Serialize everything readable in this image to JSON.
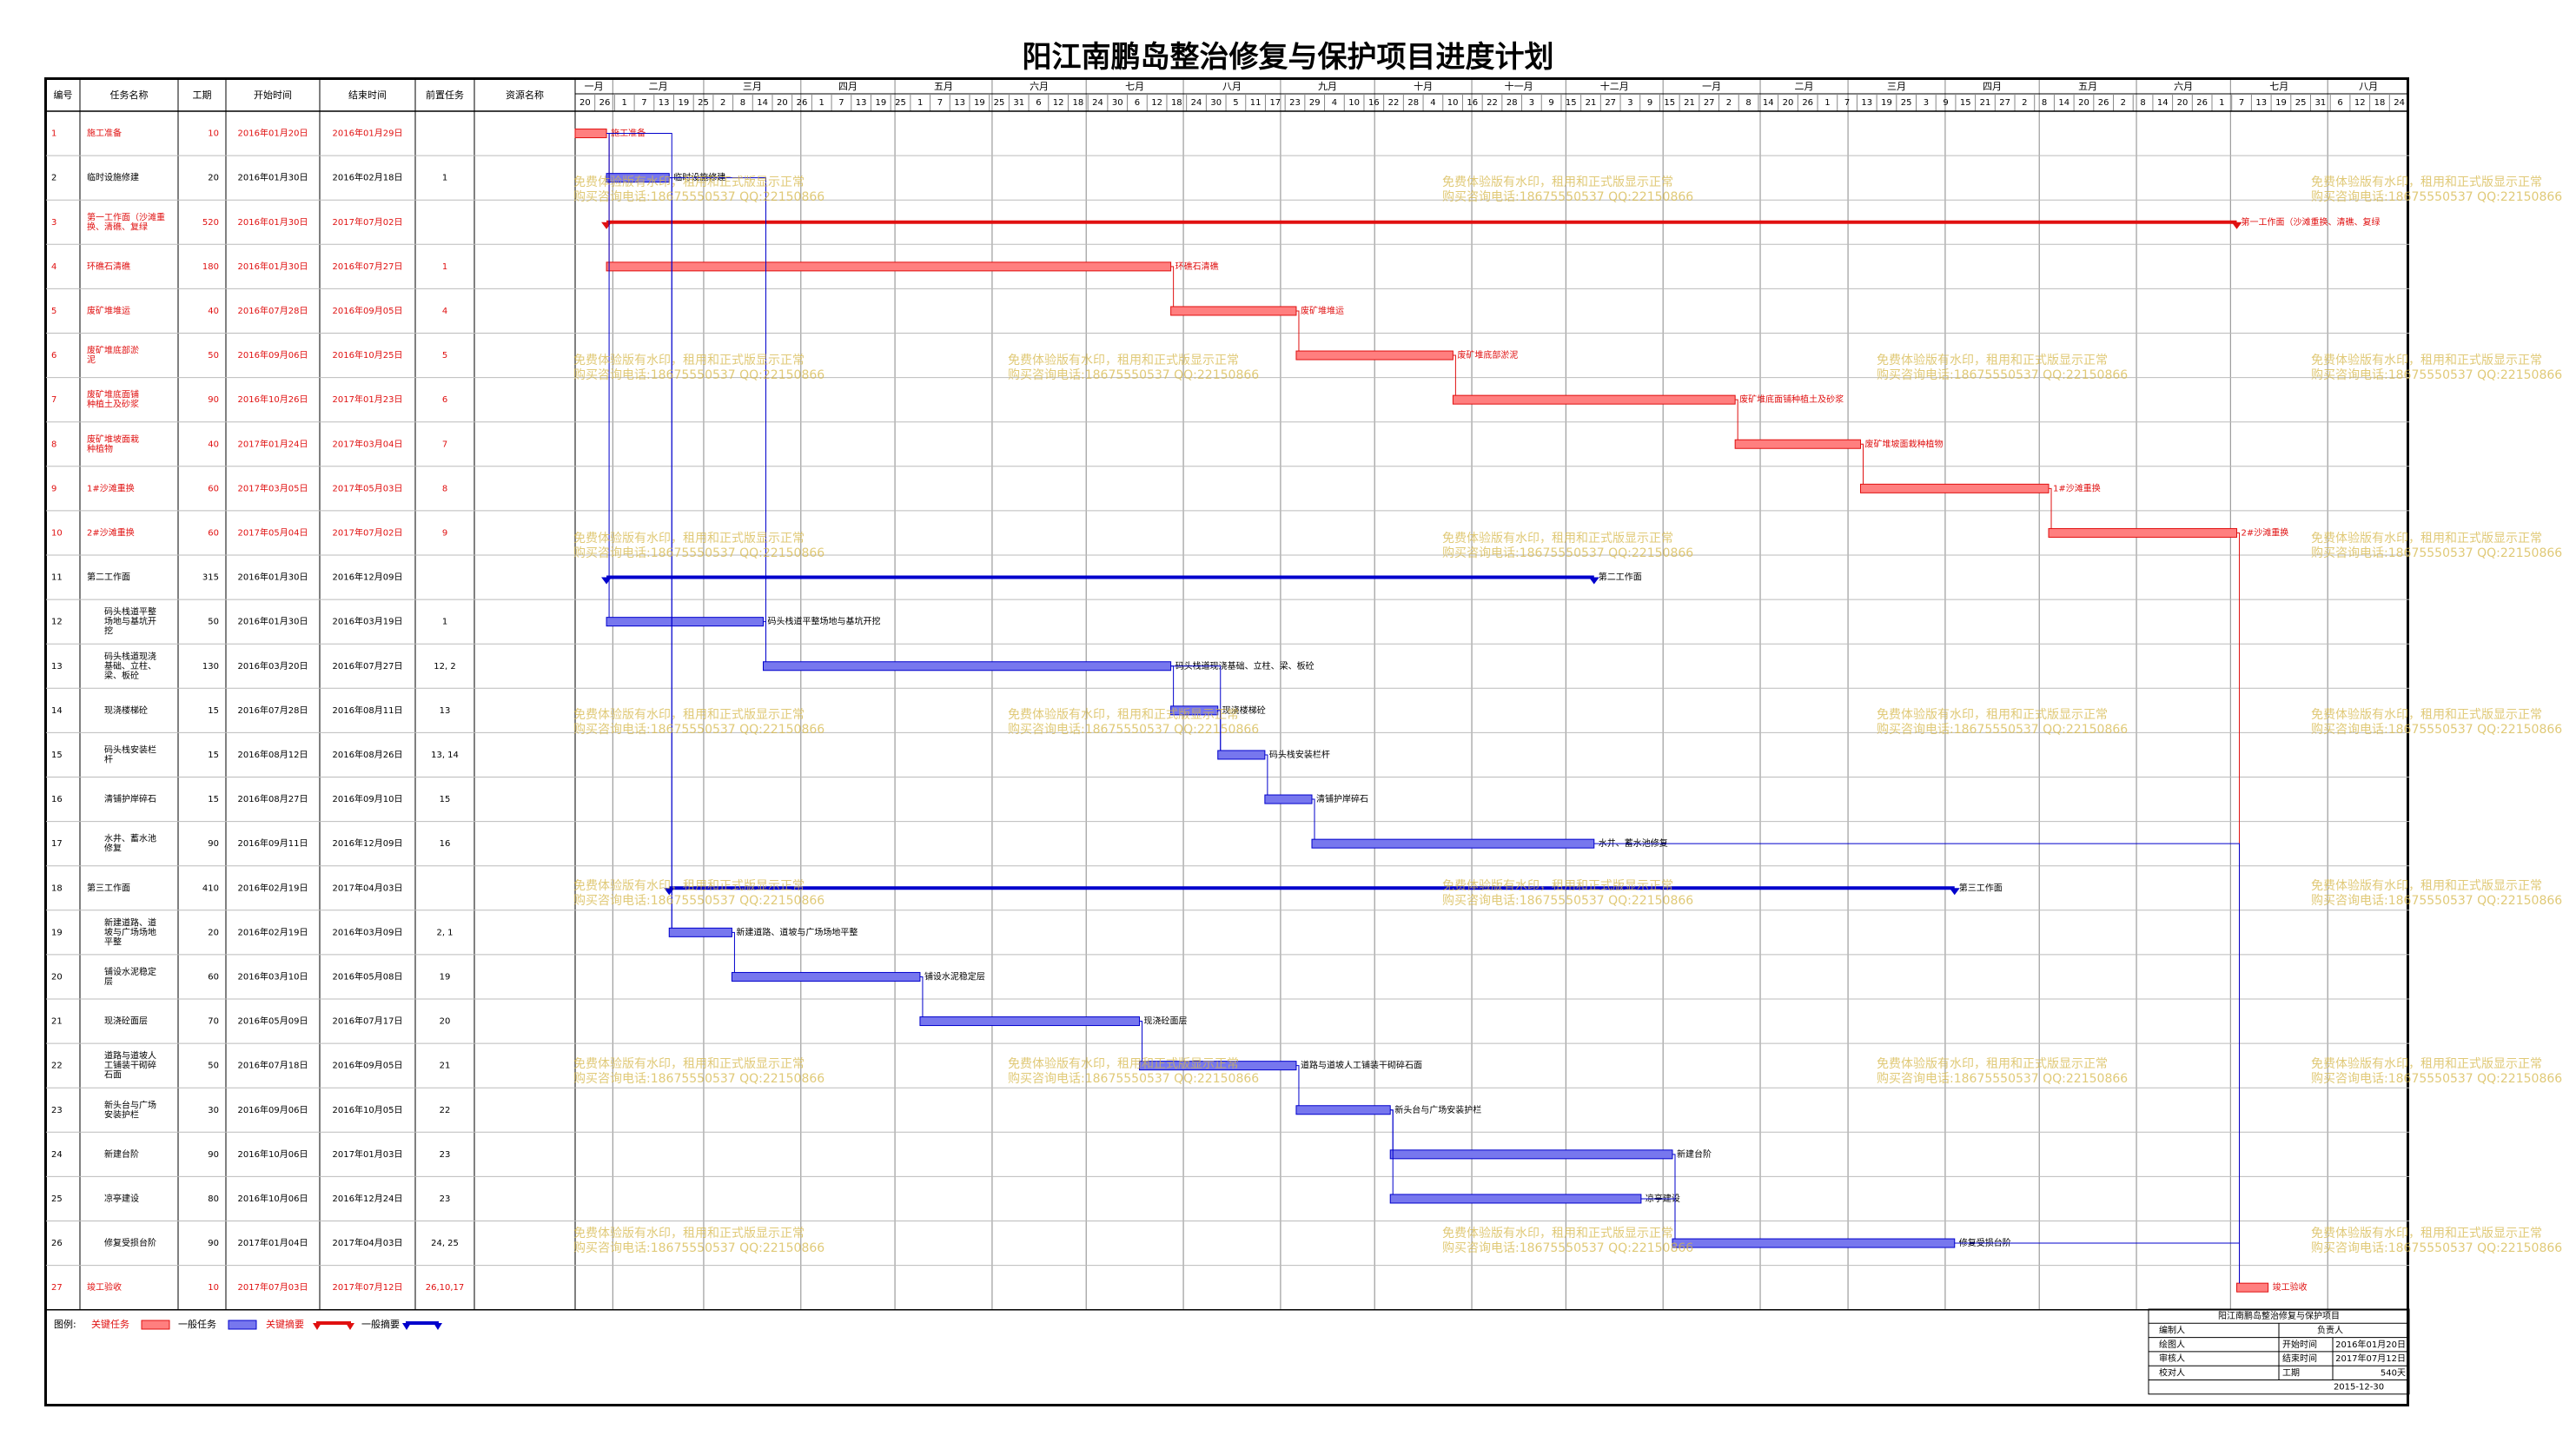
{
  "title": "阳江南鹏岛整治修复与保护项目进度计划",
  "colors": {
    "critical": "#e01010",
    "normal": "#0000cc",
    "critical_bar": "#ff7f7f",
    "normal_bar": "#7777ee",
    "watermark": "#d6b84a"
  },
  "headers": [
    "编号",
    "任务名称",
    "工期",
    "开始时间",
    "结束时间",
    "前置任务",
    "资源名称"
  ],
  "months": [
    "一月",
    "二月",
    "三月",
    "四月",
    "五月",
    "六月",
    "七月",
    "八月",
    "九月",
    "十月",
    "十一月",
    "十二月",
    "一月",
    "二月",
    "三月",
    "四月",
    "五月",
    "六月",
    "七月",
    "八月"
  ],
  "day_ticks": [
    "20",
    "26",
    "1",
    "7",
    "13",
    "19",
    "25",
    "2",
    "8",
    "14",
    "20",
    "26",
    "1",
    "7",
    "13",
    "19",
    "25",
    "1",
    "7",
    "13",
    "19",
    "25",
    "31",
    "6",
    "12",
    "18",
    "24",
    "30",
    "6",
    "12",
    "18",
    "24",
    "30",
    "5",
    "11",
    "17",
    "23",
    "29",
    "4",
    "10",
    "16",
    "22",
    "28",
    "4",
    "10",
    "16",
    "22",
    "28",
    "3",
    "9",
    "15",
    "21",
    "27",
    "3",
    "9",
    "15",
    "21",
    "27",
    "2",
    "8",
    "14",
    "20",
    "26",
    "1",
    "7",
    "13",
    "19",
    "25",
    "3",
    "9",
    "15",
    "21",
    "27",
    "2",
    "8",
    "14",
    "20",
    "26",
    "2",
    "8",
    "14",
    "20",
    "26",
    "1",
    "7",
    "13",
    "19",
    "25",
    "31",
    "6",
    "12",
    "18",
    "24"
  ],
  "chart_data": {
    "type": "gantt",
    "title": "阳江南鹏岛整治修复与保护项目进度计划",
    "tasks": [
      {
        "id": "1",
        "name": "施工准备",
        "duration": "10",
        "start": "2016年01月20日",
        "end": "2016年01月29日",
        "pred": "",
        "critical": true,
        "summary": false,
        "bar_label": "施工准备"
      },
      {
        "id": "2",
        "name": "临时设施修建",
        "duration": "20",
        "start": "2016年01月30日",
        "end": "2016年02月18日",
        "pred": "1",
        "critical": false,
        "summary": false,
        "bar_label": "临时设施修建"
      },
      {
        "id": "3",
        "name": "第一工作面（沙滩重换、清礁、复绿",
        "duration": "520",
        "start": "2016年01月30日",
        "end": "2017年07月02日",
        "pred": "",
        "critical": true,
        "summary": true,
        "bar_label": "第一工作面（沙滩重换、清礁、复绿"
      },
      {
        "id": "4",
        "name": "环礁石清礁",
        "duration": "180",
        "start": "2016年01月30日",
        "end": "2016年07月27日",
        "pred": "1",
        "critical": true,
        "summary": false,
        "bar_label": "环礁石清礁"
      },
      {
        "id": "5",
        "name": "废矿堆堆运",
        "duration": "40",
        "start": "2016年07月28日",
        "end": "2016年09月05日",
        "pred": "4",
        "critical": true,
        "summary": false,
        "bar_label": "废矿堆堆运"
      },
      {
        "id": "6",
        "name": "废矿堆底部淤泥",
        "duration": "50",
        "start": "2016年09月06日",
        "end": "2016年10月25日",
        "pred": "5",
        "critical": true,
        "summary": false,
        "bar_label": "废矿堆底部淤泥"
      },
      {
        "id": "7",
        "name": "废矿堆底面铺种植土及砂浆",
        "duration": "90",
        "start": "2016年10月26日",
        "end": "2017年01月23日",
        "pred": "6",
        "critical": true,
        "summary": false,
        "bar_label": "废矿堆底面铺种植土及砂浆"
      },
      {
        "id": "8",
        "name": "废矿堆坡面栽种植物",
        "duration": "40",
        "start": "2017年01月24日",
        "end": "2017年03月04日",
        "pred": "7",
        "critical": true,
        "summary": false,
        "bar_label": "废矿堆坡面栽种植物"
      },
      {
        "id": "9",
        "name": "1#沙滩重换",
        "duration": "60",
        "start": "2017年03月05日",
        "end": "2017年05月03日",
        "pred": "8",
        "critical": true,
        "summary": false,
        "bar_label": "1#沙滩重换"
      },
      {
        "id": "10",
        "name": "2#沙滩重换",
        "duration": "60",
        "start": "2017年05月04日",
        "end": "2017年07月02日",
        "pred": "9",
        "critical": true,
        "summary": false,
        "bar_label": "2#沙滩重换"
      },
      {
        "id": "11",
        "name": "第二工作面",
        "duration": "315",
        "start": "2016年01月30日",
        "end": "2016年12月09日",
        "pred": "",
        "critical": false,
        "summary": true,
        "bar_label": "第二工作面"
      },
      {
        "id": "12",
        "name": "码头栈道平整场地与基坑开挖",
        "duration": "50",
        "start": "2016年01月30日",
        "end": "2016年03月19日",
        "pred": "1",
        "critical": false,
        "summary": false,
        "bar_label": "码头栈道平整场地与基坑开挖"
      },
      {
        "id": "13",
        "name": "码头栈道现浇基础、立柱、梁、板砼",
        "duration": "130",
        "start": "2016年03月20日",
        "end": "2016年07月27日",
        "pred": "12, 2",
        "critical": false,
        "summary": false,
        "bar_label": "码头栈道现浇基础、立柱、梁、板砼"
      },
      {
        "id": "14",
        "name": "现浇楼梯砼",
        "duration": "15",
        "start": "2016年07月28日",
        "end": "2016年08月11日",
        "pred": "13",
        "critical": false,
        "summary": false,
        "bar_label": "现浇楼梯砼"
      },
      {
        "id": "15",
        "name": "码头栈安装栏杆",
        "duration": "15",
        "start": "2016年08月12日",
        "end": "2016年08月26日",
        "pred": "13, 14",
        "critical": false,
        "summary": false,
        "bar_label": "码头栈安装栏杆"
      },
      {
        "id": "16",
        "name": "清铺护岸碎石",
        "duration": "15",
        "start": "2016年08月27日",
        "end": "2016年09月10日",
        "pred": "15",
        "critical": false,
        "summary": false,
        "bar_label": "清铺护岸碎石"
      },
      {
        "id": "17",
        "name": "水井、蓄水池修复",
        "duration": "90",
        "start": "2016年09月11日",
        "end": "2016年12月09日",
        "pred": "16",
        "critical": false,
        "summary": false,
        "bar_label": "水井、蓄水池修复"
      },
      {
        "id": "18",
        "name": "第三工作面",
        "duration": "410",
        "start": "2016年02月19日",
        "end": "2017年04月03日",
        "pred": "",
        "critical": false,
        "summary": true,
        "bar_label": "第三工作面"
      },
      {
        "id": "19",
        "name": "新建道路、道坡与广场场地平整",
        "duration": "20",
        "start": "2016年02月19日",
        "end": "2016年03月09日",
        "pred": "2, 1",
        "critical": false,
        "summary": false,
        "bar_label": "新建道路、道坡与广场场地平整"
      },
      {
        "id": "20",
        "name": "铺设水泥稳定层",
        "duration": "60",
        "start": "2016年03月10日",
        "end": "2016年05月08日",
        "pred": "19",
        "critical": false,
        "summary": false,
        "bar_label": "铺设水泥稳定层"
      },
      {
        "id": "21",
        "name": "现浇砼面层",
        "duration": "70",
        "start": "2016年05月09日",
        "end": "2016年07月17日",
        "pred": "20",
        "critical": false,
        "summary": false,
        "bar_label": "现浇砼面层"
      },
      {
        "id": "22",
        "name": "道路与道坡人工铺装干砌碎石面",
        "duration": "50",
        "start": "2016年07月18日",
        "end": "2016年09月05日",
        "pred": "21",
        "critical": false,
        "summary": false,
        "bar_label": "道路与道坡人工铺装干砌碎石面"
      },
      {
        "id": "23",
        "name": "新头台与广场安装护栏",
        "duration": "30",
        "start": "2016年09月06日",
        "end": "2016年10月05日",
        "pred": "22",
        "critical": false,
        "summary": false,
        "bar_label": "新头台与广场安装护栏"
      },
      {
        "id": "24",
        "name": "新建台阶",
        "duration": "90",
        "start": "2016年10月06日",
        "end": "2017年01月03日",
        "pred": "23",
        "critical": false,
        "summary": false,
        "bar_label": "新建台阶"
      },
      {
        "id": "25",
        "name": "凉亭建设",
        "duration": "80",
        "start": "2016年10月06日",
        "end": "2016年12月24日",
        "pred": "23",
        "critical": false,
        "summary": false,
        "bar_label": "凉亭建设"
      },
      {
        "id": "26",
        "name": "修复受损台阶",
        "duration": "90",
        "start": "2017年01月04日",
        "end": "2017年04月03日",
        "pred": "24, 25",
        "critical": false,
        "summary": false,
        "bar_label": "修复受损台阶"
      },
      {
        "id": "27",
        "name": "竣工验收",
        "duration": "10",
        "start": "2017年07月03日",
        "end": "2017年07月12日",
        "pred": "26,10,17",
        "critical": true,
        "summary": false,
        "bar_label": "竣工验收"
      }
    ]
  },
  "legend": {
    "label": "图例:",
    "items": [
      "关键任务",
      "一般任务",
      "关键摘要",
      "一般摘要"
    ]
  },
  "watermark": {
    "line1": "免费体验版有水印，租用和正式版显示正常",
    "line2": "购买咨询电话:18675550537 QQ:22150866"
  },
  "info_box": {
    "project": "阳江南鹏岛整治修复与保护项目",
    "rows": [
      [
        "编制人",
        "负责人",
        ""
      ],
      [
        "绘图人",
        "开始时间",
        "2016年01月20日"
      ],
      [
        "审核人",
        "结束时间",
        "2017年07月12日"
      ],
      [
        "校对人",
        "工期",
        "540天"
      ]
    ],
    "date": "2015-12-30"
  }
}
